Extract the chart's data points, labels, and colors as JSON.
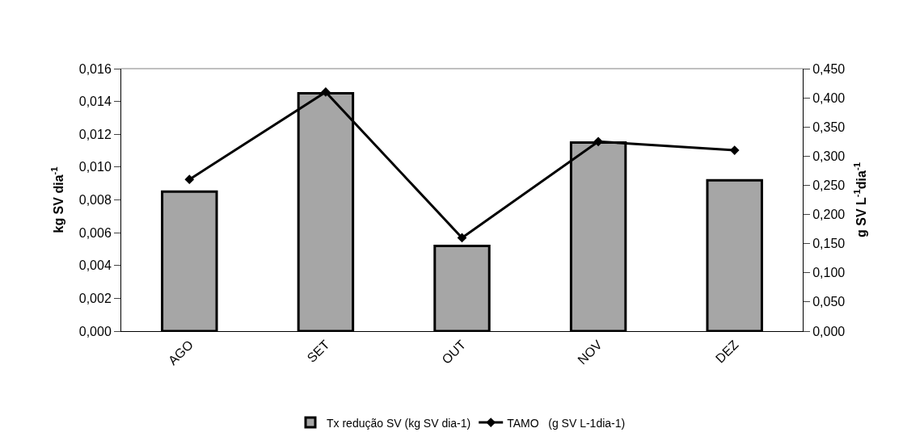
{
  "chart_data": {
    "type": "bar",
    "categories": [
      "AGO",
      "SET",
      "OUT",
      "NOV",
      "DEZ"
    ],
    "series": [
      {
        "name": "Tx redução SV (kg SV dia-1)",
        "color": "#a6a6a6",
        "values": [
          0.0085,
          0.0145,
          0.0052,
          0.0115,
          0.0092
        ]
      },
      {
        "name": "TAMO   (g SV L-1dia-1)",
        "type": "line",
        "axis": "y2",
        "color": "#000000",
        "marker": "diamond",
        "values": [
          0.26,
          0.41,
          0.16,
          0.325,
          0.31
        ]
      }
    ],
    "ylabel": "kg SV dia$^{-1}$",
    "y2label": "g SV L$^{-1}$dia$^{-1}$",
    "ylim": [
      0,
      0.016
    ],
    "yticks": [
      {
        "value": 0,
        "label": "0,000"
      },
      {
        "value": 0.002,
        "label": "0,002"
      },
      {
        "value": 0.004,
        "label": "0,004"
      },
      {
        "value": 0.006,
        "label": "0,006"
      },
      {
        "value": 0.008,
        "label": "0,008"
      },
      {
        "value": 0.01,
        "label": "0,010"
      },
      {
        "value": 0.012,
        "label": "0,012"
      },
      {
        "value": 0.014,
        "label": "0,014"
      },
      {
        "value": 0.016,
        "label": "0,016"
      }
    ],
    "y2lim": [
      0,
      0.45
    ],
    "y2ticks": [
      {
        "value": 0,
        "label": "0,000"
      },
      {
        "value": 0.05,
        "label": "0,050"
      },
      {
        "value": 0.1,
        "label": "0,100"
      },
      {
        "value": 0.15,
        "label": "0,150"
      },
      {
        "value": 0.2,
        "label": "0,200"
      },
      {
        "value": 0.25,
        "label": "0,250"
      },
      {
        "value": 0.3,
        "label": "0,300"
      },
      {
        "value": 0.35,
        "label": "0,350"
      },
      {
        "value": 0.4,
        "label": "0,400"
      },
      {
        "value": 0.45,
        "label": "0,450"
      }
    ],
    "grid": false,
    "legend": "bottom"
  }
}
